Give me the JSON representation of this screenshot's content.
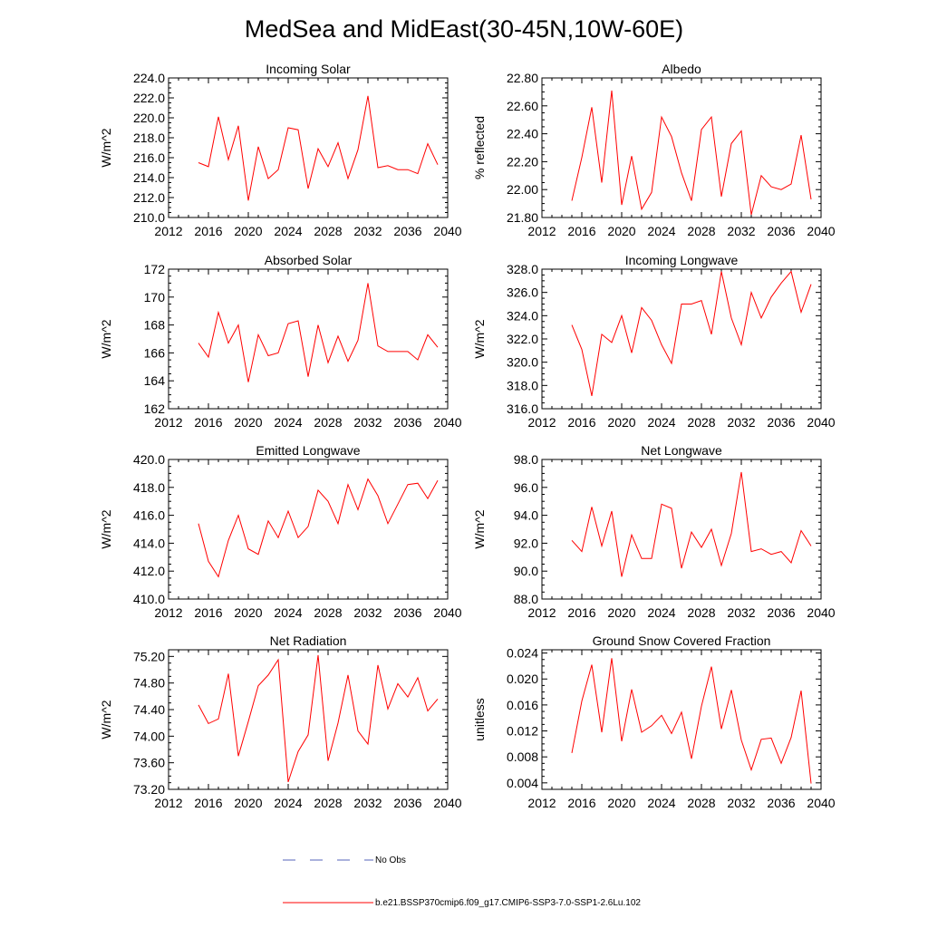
{
  "title": "MedSea and MidEast(30-45N,10W-60E)",
  "colors": {
    "series": "#ff0000",
    "obs": "#5566bb",
    "axis": "#000000"
  },
  "legend": {
    "items": [
      {
        "label": "No Obs",
        "style": "dashed",
        "color": "#5566bb"
      },
      {
        "label": "b.e21.BSSP370cmip6.f09_g17.CMIP6-SSP3-7.0-SSP1-2.6Lu.102",
        "style": "solid",
        "color": "#ff0000"
      }
    ]
  },
  "chart_data": [
    {
      "type": "line",
      "title": "Incoming Solar",
      "ylabel": "W/m^2",
      "xlim": [
        2012,
        2040
      ],
      "ylim": [
        210,
        224
      ],
      "xticks": [
        2012,
        2016,
        2020,
        2024,
        2028,
        2032,
        2036,
        2040
      ],
      "xtick_labels": [
        "2012",
        "2016",
        "2020",
        "2024",
        "2028",
        "2032",
        "2036",
        "2040"
      ],
      "yticks": [
        210,
        212,
        214,
        216,
        218,
        220,
        222,
        224
      ],
      "ytick_labels": [
        "210.0",
        "212.0",
        "214.0",
        "216.0",
        "218.0",
        "220.0",
        "222.0",
        "224.0"
      ],
      "series": [
        {
          "x": [
            2015,
            2016,
            2017,
            2018,
            2019,
            2020,
            2021,
            2022,
            2023,
            2024,
            2025,
            2026,
            2027,
            2028,
            2029,
            2030,
            2031,
            2032,
            2033,
            2034,
            2035,
            2036,
            2037,
            2038,
            2039
          ],
          "y": [
            215.5,
            215.1,
            220.1,
            215.8,
            219.2,
            211.7,
            217.1,
            213.9,
            214.8,
            219.0,
            218.8,
            212.9,
            216.9,
            215.1,
            217.5,
            213.9,
            216.8,
            222.2,
            215.0,
            215.2,
            214.8,
            214.8,
            214.4,
            217.4,
            215.3
          ]
        }
      ]
    },
    {
      "type": "line",
      "title": "Albedo",
      "ylabel": "% reflected",
      "xlim": [
        2012,
        2040
      ],
      "ylim": [
        21.8,
        22.8
      ],
      "xticks": [
        2012,
        2016,
        2020,
        2024,
        2028,
        2032,
        2036,
        2040
      ],
      "xtick_labels": [
        "2012",
        "2016",
        "2020",
        "2024",
        "2028",
        "2032",
        "2036",
        "2040"
      ],
      "yticks": [
        21.8,
        22.0,
        22.2,
        22.4,
        22.6,
        22.8
      ],
      "ytick_labels": [
        "21.80",
        "22.00",
        "22.20",
        "22.40",
        "22.60",
        "22.80"
      ],
      "series": [
        {
          "x": [
            2015,
            2016,
            2017,
            2018,
            2019,
            2020,
            2021,
            2022,
            2023,
            2024,
            2025,
            2026,
            2027,
            2028,
            2029,
            2030,
            2031,
            2032,
            2033,
            2034,
            2035,
            2036,
            2037,
            2038,
            2039
          ],
          "y": [
            21.92,
            22.23,
            22.59,
            22.05,
            22.71,
            21.89,
            22.24,
            21.86,
            21.98,
            22.52,
            22.38,
            22.12,
            21.92,
            22.43,
            22.52,
            21.95,
            22.33,
            22.42,
            21.82,
            22.1,
            22.02,
            22.0,
            22.04,
            22.39,
            21.93
          ]
        }
      ]
    },
    {
      "type": "line",
      "title": "Absorbed Solar",
      "ylabel": "W/m^2",
      "xlim": [
        2012,
        2040
      ],
      "ylim": [
        162,
        172
      ],
      "xticks": [
        2012,
        2016,
        2020,
        2024,
        2028,
        2032,
        2036,
        2040
      ],
      "xtick_labels": [
        "2012",
        "2016",
        "2020",
        "2024",
        "2028",
        "2032",
        "2036",
        "2040"
      ],
      "yticks": [
        162,
        164,
        166,
        168,
        170,
        172
      ],
      "ytick_labels": [
        "162",
        "164",
        "166",
        "168",
        "170",
        "172"
      ],
      "series": [
        {
          "x": [
            2015,
            2016,
            2017,
            2018,
            2019,
            2020,
            2021,
            2022,
            2023,
            2024,
            2025,
            2026,
            2027,
            2028,
            2029,
            2030,
            2031,
            2032,
            2033,
            2034,
            2035,
            2036,
            2037,
            2038,
            2039
          ],
          "y": [
            166.7,
            165.7,
            168.9,
            166.7,
            168.0,
            163.9,
            167.3,
            165.8,
            166.0,
            168.1,
            168.3,
            164.3,
            168.0,
            165.3,
            167.2,
            165.4,
            166.9,
            171.0,
            166.5,
            166.1,
            166.1,
            166.1,
            165.5,
            167.3,
            166.4
          ]
        }
      ]
    },
    {
      "type": "line",
      "title": "Incoming Longwave",
      "ylabel": "W/m^2",
      "xlim": [
        2012,
        2040
      ],
      "ylim": [
        316,
        328
      ],
      "xticks": [
        2012,
        2016,
        2020,
        2024,
        2028,
        2032,
        2036,
        2040
      ],
      "xtick_labels": [
        "2012",
        "2016",
        "2020",
        "2024",
        "2028",
        "2032",
        "2036",
        "2040"
      ],
      "yticks": [
        316,
        318,
        320,
        322,
        324,
        326,
        328
      ],
      "ytick_labels": [
        "316.0",
        "318.0",
        "320.0",
        "322.0",
        "324.0",
        "326.0",
        "328.0"
      ],
      "series": [
        {
          "x": [
            2015,
            2016,
            2017,
            2018,
            2019,
            2020,
            2021,
            2022,
            2023,
            2024,
            2025,
            2026,
            2027,
            2028,
            2029,
            2030,
            2031,
            2032,
            2033,
            2034,
            2035,
            2036,
            2037,
            2038,
            2039
          ],
          "y": [
            323.2,
            321.1,
            317.1,
            322.4,
            321.7,
            324.0,
            320.8,
            324.7,
            323.6,
            321.5,
            319.9,
            325.0,
            325.0,
            325.3,
            322.4,
            327.8,
            323.8,
            321.5,
            326.0,
            323.8,
            325.6,
            326.8,
            327.8,
            324.3,
            326.7
          ]
        }
      ]
    },
    {
      "type": "line",
      "title": "Emitted Longwave",
      "ylabel": "W/m^2",
      "xlim": [
        2012,
        2040
      ],
      "ylim": [
        410,
        420
      ],
      "xticks": [
        2012,
        2016,
        2020,
        2024,
        2028,
        2032,
        2036,
        2040
      ],
      "xtick_labels": [
        "2012",
        "2016",
        "2020",
        "2024",
        "2028",
        "2032",
        "2036",
        "2040"
      ],
      "yticks": [
        410,
        412,
        414,
        416,
        418,
        420
      ],
      "ytick_labels": [
        "410.0",
        "412.0",
        "414.0",
        "416.0",
        "418.0",
        "420.0"
      ],
      "series": [
        {
          "x": [
            2015,
            2016,
            2017,
            2018,
            2019,
            2020,
            2021,
            2022,
            2023,
            2024,
            2025,
            2026,
            2027,
            2028,
            2029,
            2030,
            2031,
            2032,
            2033,
            2034,
            2035,
            2036,
            2037,
            2038,
            2039
          ],
          "y": [
            415.4,
            412.7,
            411.6,
            414.2,
            416.0,
            413.6,
            413.2,
            415.6,
            414.4,
            416.3,
            414.4,
            415.2,
            417.8,
            417.0,
            415.4,
            418.2,
            416.4,
            418.6,
            417.4,
            415.4,
            416.8,
            418.2,
            418.3,
            417.2,
            418.5
          ]
        }
      ]
    },
    {
      "type": "line",
      "title": "Net Longwave",
      "ylabel": "W/m^2",
      "xlim": [
        2012,
        2040
      ],
      "ylim": [
        88,
        98
      ],
      "xticks": [
        2012,
        2016,
        2020,
        2024,
        2028,
        2032,
        2036,
        2040
      ],
      "xtick_labels": [
        "2012",
        "2016",
        "2020",
        "2024",
        "2028",
        "2032",
        "2036",
        "2040"
      ],
      "yticks": [
        88,
        90,
        92,
        94,
        96,
        98
      ],
      "ytick_labels": [
        "88.0",
        "90.0",
        "92.0",
        "94.0",
        "96.0",
        "98.0"
      ],
      "series": [
        {
          "x": [
            2015,
            2016,
            2017,
            2018,
            2019,
            2020,
            2021,
            2022,
            2023,
            2024,
            2025,
            2026,
            2027,
            2028,
            2029,
            2030,
            2031,
            2032,
            2033,
            2034,
            2035,
            2036,
            2037,
            2038,
            2039
          ],
          "y": [
            92.2,
            91.4,
            94.6,
            91.8,
            94.3,
            89.6,
            92.6,
            90.9,
            90.9,
            94.8,
            94.5,
            90.2,
            92.8,
            91.7,
            93.0,
            90.4,
            92.7,
            97.1,
            91.4,
            91.6,
            91.2,
            91.4,
            90.6,
            92.9,
            91.8
          ]
        }
      ]
    },
    {
      "type": "line",
      "title": "Net Radiation",
      "ylabel": "W/m^2",
      "xlim": [
        2012,
        2040
      ],
      "ylim": [
        73.2,
        75.3
      ],
      "xticks": [
        2012,
        2016,
        2020,
        2024,
        2028,
        2032,
        2036,
        2040
      ],
      "xtick_labels": [
        "2012",
        "2016",
        "2020",
        "2024",
        "2028",
        "2032",
        "2036",
        "2040"
      ],
      "yticks": [
        73.2,
        73.6,
        74.0,
        74.4,
        74.8,
        75.2
      ],
      "ytick_labels": [
        "73.20",
        "73.60",
        "74.00",
        "74.40",
        "74.80",
        "75.20"
      ],
      "series": [
        {
          "x": [
            2015,
            2016,
            2017,
            2018,
            2019,
            2020,
            2021,
            2022,
            2023,
            2024,
            2025,
            2026,
            2027,
            2028,
            2029,
            2030,
            2031,
            2032,
            2033,
            2034,
            2035,
            2036,
            2037,
            2038,
            2039
          ],
          "y": [
            74.47,
            74.19,
            74.26,
            74.94,
            73.7,
            74.22,
            74.76,
            74.92,
            75.15,
            73.31,
            73.77,
            74.02,
            75.22,
            73.63,
            74.2,
            74.92,
            74.08,
            73.88,
            75.07,
            74.41,
            74.79,
            74.59,
            74.88,
            74.38,
            74.56
          ]
        }
      ]
    },
    {
      "type": "line",
      "title": "Ground Snow Covered Fraction",
      "ylabel": "unitless",
      "xlim": [
        2012,
        2040
      ],
      "ylim": [
        0.003,
        0.0245
      ],
      "xticks": [
        2012,
        2016,
        2020,
        2024,
        2028,
        2032,
        2036,
        2040
      ],
      "xtick_labels": [
        "2012",
        "2016",
        "2020",
        "2024",
        "2028",
        "2032",
        "2036",
        "2040"
      ],
      "yticks": [
        0.004,
        0.008,
        0.012,
        0.016,
        0.02,
        0.024
      ],
      "ytick_labels": [
        "0.004",
        "0.008",
        "0.012",
        "0.016",
        "0.020",
        "0.024"
      ],
      "series": [
        {
          "x": [
            2015,
            2016,
            2017,
            2018,
            2019,
            2020,
            2021,
            2022,
            2023,
            2024,
            2025,
            2026,
            2027,
            2028,
            2029,
            2030,
            2031,
            2032,
            2033,
            2034,
            2035,
            2036,
            2037,
            2038,
            2039
          ],
          "y": [
            0.0086,
            0.0166,
            0.0222,
            0.0118,
            0.0232,
            0.0104,
            0.0184,
            0.0118,
            0.0128,
            0.0144,
            0.0116,
            0.0149,
            0.0077,
            0.0158,
            0.0219,
            0.0123,
            0.0183,
            0.0106,
            0.006,
            0.0107,
            0.0109,
            0.007,
            0.011,
            0.0182,
            0.0039
          ]
        }
      ]
    }
  ]
}
